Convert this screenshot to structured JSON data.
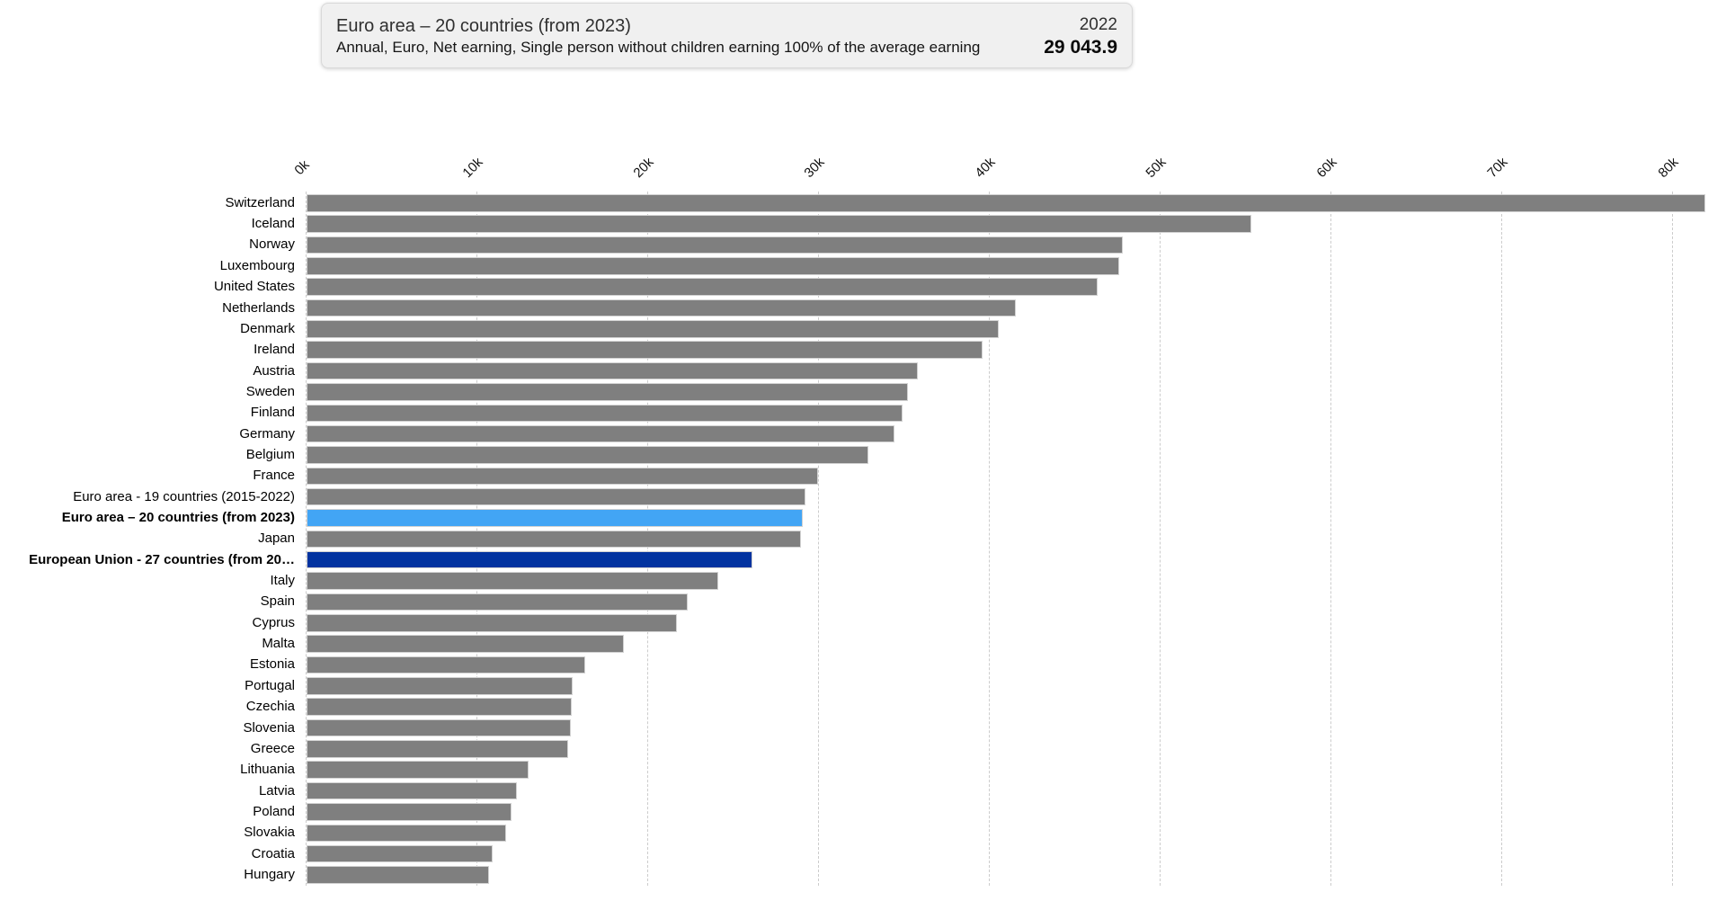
{
  "tooltip": {
    "title": "Euro area – 20 countries (from 2023)",
    "subtitle": "Annual, Euro, Net earning, Single person without children earning 100% of the average earning",
    "year": "2022",
    "value": "29 043.9"
  },
  "colors": {
    "bar_default": "#7f7f7f",
    "bar_highlight_light": "#42a5f5",
    "bar_highlight_dark": "#0233a0",
    "gridline": "#cccccc",
    "card_background": "#f0f0f0"
  },
  "chart_data": {
    "type": "bar",
    "orientation": "horizontal",
    "title": "",
    "xlabel": "",
    "ylabel": "",
    "unit": "EUR",
    "x_ticks": [
      "0k",
      "10k",
      "20k",
      "30k",
      "40k",
      "50k",
      "60k",
      "70k",
      "80k"
    ],
    "x_tick_values": [
      0,
      10000,
      20000,
      30000,
      40000,
      50000,
      60000,
      70000,
      80000
    ],
    "xlim": [
      0,
      82000
    ],
    "grid": "dashed-vertical",
    "legend": "none",
    "items": [
      {
        "label": "Switzerland",
        "value": 81900,
        "color": "bar_default",
        "bold": false
      },
      {
        "label": "Iceland",
        "value": 55300,
        "color": "bar_default",
        "bold": false
      },
      {
        "label": "Norway",
        "value": 47800,
        "color": "bar_default",
        "bold": false
      },
      {
        "label": "Luxembourg",
        "value": 47600,
        "color": "bar_default",
        "bold": false
      },
      {
        "label": "United States",
        "value": 46300,
        "color": "bar_default",
        "bold": false
      },
      {
        "label": "Netherlands",
        "value": 41500,
        "color": "bar_default",
        "bold": false
      },
      {
        "label": "Denmark",
        "value": 40500,
        "color": "bar_default",
        "bold": false
      },
      {
        "label": "Ireland",
        "value": 39600,
        "color": "bar_default",
        "bold": false
      },
      {
        "label": "Austria",
        "value": 35800,
        "color": "bar_default",
        "bold": false
      },
      {
        "label": "Sweden",
        "value": 35200,
        "color": "bar_default",
        "bold": false
      },
      {
        "label": "Finland",
        "value": 34900,
        "color": "bar_default",
        "bold": false
      },
      {
        "label": "Germany",
        "value": 34400,
        "color": "bar_default",
        "bold": false
      },
      {
        "label": "Belgium",
        "value": 32900,
        "color": "bar_default",
        "bold": false
      },
      {
        "label": "France",
        "value": 29950,
        "color": "bar_default",
        "bold": false
      },
      {
        "label": "Euro area - 19 countries  (2015-2022)",
        "value": 29200,
        "color": "bar_default",
        "bold": false
      },
      {
        "label": "Euro area – 20 countries (from 2023)",
        "value": 29043.9,
        "color": "bar_highlight_light",
        "bold": true
      },
      {
        "label": "Japan",
        "value": 28950,
        "color": "bar_default",
        "bold": false
      },
      {
        "label": "European Union - 27 countries (from 20…",
        "value": 26100,
        "color": "bar_highlight_dark",
        "bold": true
      },
      {
        "label": "Italy",
        "value": 24100,
        "color": "bar_default",
        "bold": false
      },
      {
        "label": "Spain",
        "value": 22300,
        "color": "bar_default",
        "bold": false
      },
      {
        "label": "Cyprus",
        "value": 21700,
        "color": "bar_default",
        "bold": false
      },
      {
        "label": "Malta",
        "value": 18600,
        "color": "bar_default",
        "bold": false
      },
      {
        "label": "Estonia",
        "value": 16300,
        "color": "bar_default",
        "bold": false
      },
      {
        "label": "Portugal",
        "value": 15600,
        "color": "bar_default",
        "bold": false
      },
      {
        "label": "Czechia",
        "value": 15500,
        "color": "bar_default",
        "bold": false
      },
      {
        "label": "Slovenia",
        "value": 15450,
        "color": "bar_default",
        "bold": false
      },
      {
        "label": "Greece",
        "value": 15300,
        "color": "bar_default",
        "bold": false
      },
      {
        "label": "Lithuania",
        "value": 13000,
        "color": "bar_default",
        "bold": false
      },
      {
        "label": "Latvia",
        "value": 12300,
        "color": "bar_default",
        "bold": false
      },
      {
        "label": "Poland",
        "value": 12000,
        "color": "bar_default",
        "bold": false
      },
      {
        "label": "Slovakia",
        "value": 11700,
        "color": "bar_default",
        "bold": false
      },
      {
        "label": "Croatia",
        "value": 10900,
        "color": "bar_default",
        "bold": false
      },
      {
        "label": "Hungary",
        "value": 10700,
        "color": "bar_default",
        "bold": false
      }
    ]
  }
}
